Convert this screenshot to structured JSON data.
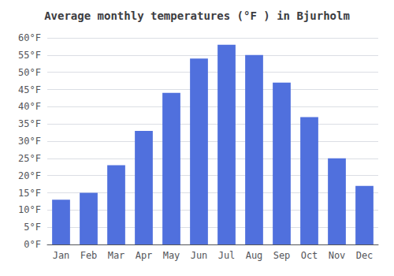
{
  "chart_data": {
    "type": "bar",
    "title": "Average monthly temperatures (°F ) in Bjurholm",
    "categories": [
      "Jan",
      "Feb",
      "Mar",
      "Apr",
      "May",
      "Jun",
      "Jul",
      "Aug",
      "Sep",
      "Oct",
      "Nov",
      "Dec"
    ],
    "values": [
      13,
      15,
      23,
      33,
      44,
      54,
      58,
      55,
      47,
      37,
      25,
      17
    ],
    "ylim": [
      0,
      60
    ],
    "yticks": [
      {
        "value": 0,
        "label": "0°F"
      },
      {
        "value": 5,
        "label": "5°F"
      },
      {
        "value": 10,
        "label": "10°F"
      },
      {
        "value": 15,
        "label": "15°F"
      },
      {
        "value": 20,
        "label": "20°F"
      },
      {
        "value": 25,
        "label": "25°F"
      },
      {
        "value": 30,
        "label": "30°F"
      },
      {
        "value": 35,
        "label": "35°F"
      },
      {
        "value": 40,
        "label": "40°F"
      },
      {
        "value": 45,
        "label": "45°F"
      },
      {
        "value": 50,
        "label": "50°F"
      },
      {
        "value": 55,
        "label": "55°F"
      },
      {
        "value": 60,
        "label": "60°F"
      }
    ],
    "grid": true
  }
}
